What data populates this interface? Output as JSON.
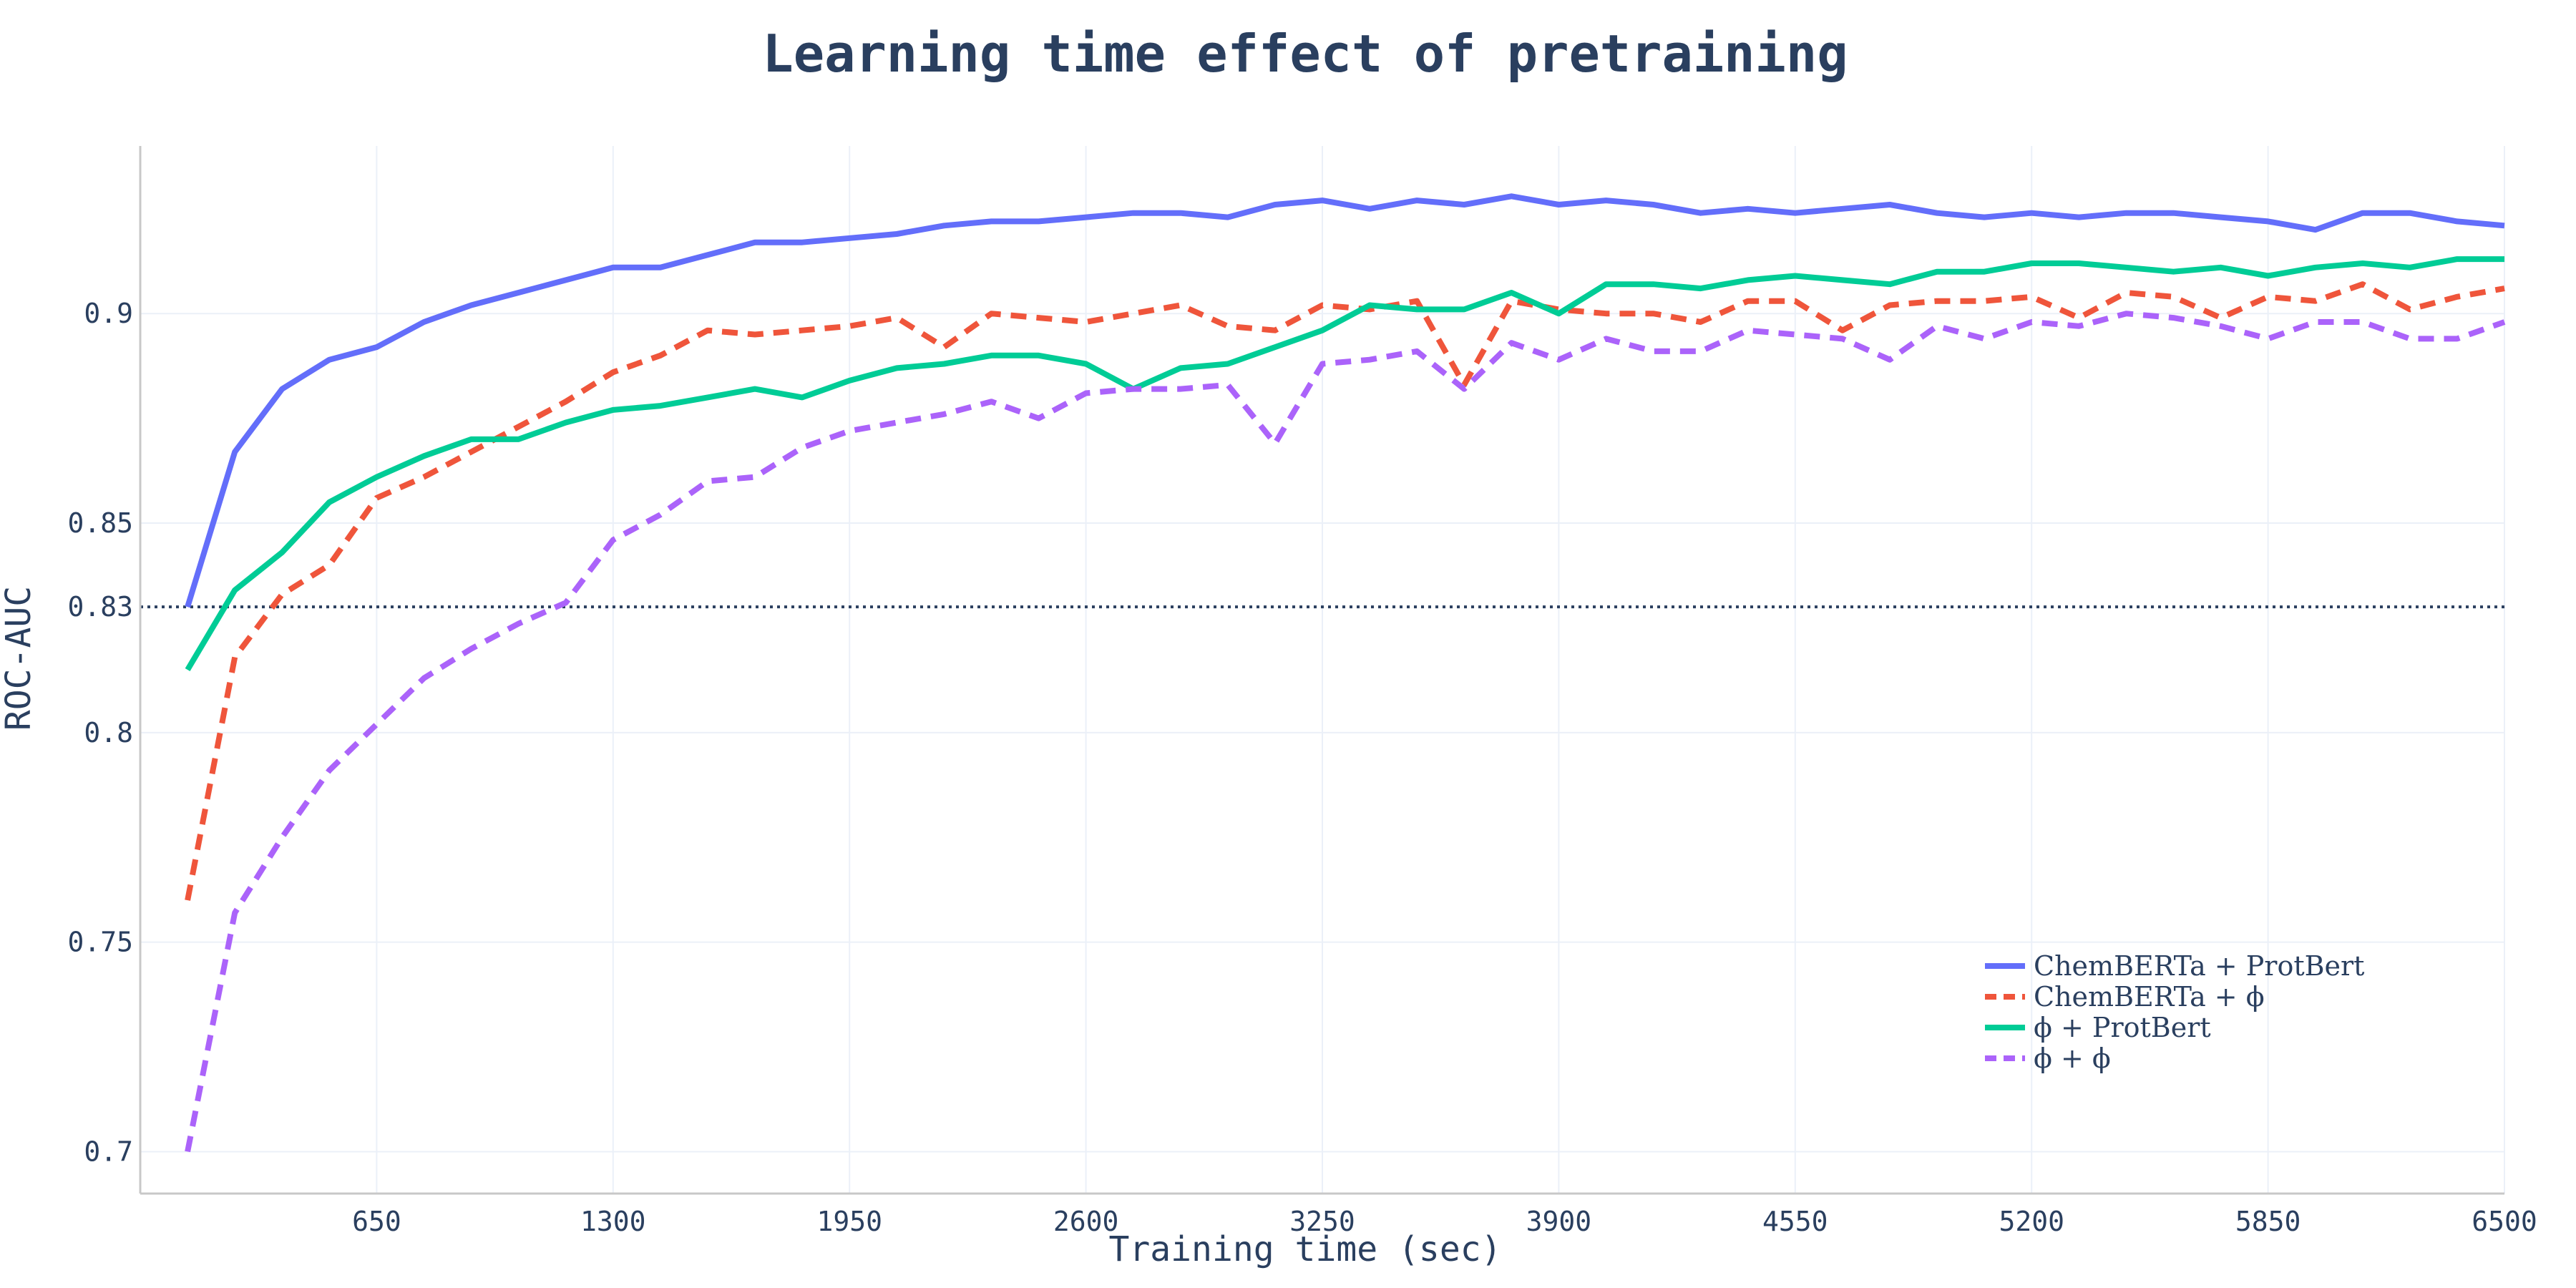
{
  "chart_data": {
    "type": "line",
    "title": "Learning time effect of pretraining",
    "xlabel": "Training time (sec)",
    "ylabel": "ROC-AUC",
    "xlim": [
      0,
      6500
    ],
    "ylim": [
      0.69,
      0.94
    ],
    "x_ticks": [
      650,
      1300,
      1950,
      2600,
      3250,
      3900,
      4550,
      5200,
      5850,
      6500
    ],
    "x_tick_labels": [
      "650",
      "1300",
      "1950",
      "2600",
      "3250",
      "3900",
      "4550",
      "5200",
      "5850",
      "6500"
    ],
    "y_ticks": [
      0.7,
      0.75,
      0.8,
      0.83,
      0.85,
      0.9
    ],
    "y_tick_labels": [
      "0.7",
      "0.75",
      "0.8",
      "0.83",
      "0.85",
      "0.9"
    ],
    "reference_line": {
      "y": 0.83,
      "style": "dotted",
      "color": "#2a3f5f"
    },
    "grid": true,
    "legend": {
      "position": "bottom-right"
    },
    "x": [
      130,
      260,
      390,
      520,
      650,
      780,
      910,
      1040,
      1170,
      1300,
      1430,
      1560,
      1690,
      1820,
      1950,
      2080,
      2210,
      2340,
      2470,
      2600,
      2730,
      2860,
      2990,
      3120,
      3250,
      3380,
      3510,
      3640,
      3770,
      3900,
      4030,
      4160,
      4290,
      4420,
      4550,
      4680,
      4810,
      4940,
      5070,
      5200,
      5330,
      5460,
      5590,
      5720,
      5850,
      5980,
      6110,
      6240,
      6370,
      6500
    ],
    "series": [
      {
        "name": "ChemBERTa + ProtBert",
        "legend_tex": "ChemBERTa + ProtBert",
        "color": "#636efa",
        "dash": "solid",
        "values": [
          0.83,
          0.867,
          0.882,
          0.889,
          0.892,
          0.898,
          0.902,
          0.905,
          0.908,
          0.911,
          0.911,
          0.914,
          0.917,
          0.917,
          0.918,
          0.919,
          0.921,
          0.922,
          0.922,
          0.923,
          0.924,
          0.924,
          0.923,
          0.926,
          0.927,
          0.925,
          0.927,
          0.926,
          0.928,
          0.926,
          0.927,
          0.926,
          0.924,
          0.925,
          0.924,
          0.925,
          0.926,
          0.924,
          0.923,
          0.924,
          0.923,
          0.924,
          0.924,
          0.923,
          0.922,
          0.92,
          0.924,
          0.924,
          0.922,
          0.921
        ]
      },
      {
        "name": "ChemBERTa + ϕ",
        "legend_tex": "ChemBERTa + ϕ",
        "color": "#ef553b",
        "dash": "dashed",
        "values": [
          0.76,
          0.818,
          0.833,
          0.84,
          0.856,
          0.861,
          0.867,
          0.873,
          0.879,
          0.886,
          0.89,
          0.896,
          0.895,
          0.896,
          0.897,
          0.899,
          0.892,
          0.9,
          0.899,
          0.898,
          0.9,
          0.902,
          0.897,
          0.896,
          0.902,
          0.901,
          0.903,
          0.883,
          0.903,
          0.901,
          0.9,
          0.9,
          0.898,
          0.903,
          0.903,
          0.896,
          0.902,
          0.903,
          0.903,
          0.904,
          0.899,
          0.905,
          0.904,
          0.899,
          0.904,
          0.903,
          0.907,
          0.901,
          0.904,
          0.906
        ]
      },
      {
        "name": "ϕ + ProtBert",
        "legend_tex": "ϕ + ProtBert",
        "color": "#00cc96",
        "dash": "solid",
        "values": [
          0.815,
          0.834,
          0.843,
          0.855,
          0.861,
          0.866,
          0.87,
          0.87,
          0.874,
          0.877,
          0.878,
          0.88,
          0.882,
          0.88,
          0.884,
          0.887,
          0.888,
          0.89,
          0.89,
          0.888,
          0.882,
          0.887,
          0.888,
          0.892,
          0.896,
          0.902,
          0.901,
          0.901,
          0.905,
          0.9,
          0.907,
          0.907,
          0.906,
          0.908,
          0.909,
          0.908,
          0.907,
          0.91,
          0.91,
          0.912,
          0.912,
          0.911,
          0.91,
          0.911,
          0.909,
          0.911,
          0.912,
          0.911,
          0.913,
          0.913
        ]
      },
      {
        "name": "ϕ + ϕ",
        "legend_tex": "ϕ + ϕ",
        "color": "#ab63fa",
        "dash": "dashed",
        "values": [
          0.7,
          0.757,
          0.775,
          0.791,
          0.802,
          0.813,
          0.82,
          0.826,
          0.831,
          0.846,
          0.852,
          0.86,
          0.861,
          0.868,
          0.872,
          0.874,
          0.876,
          0.879,
          0.875,
          0.881,
          0.882,
          0.882,
          0.883,
          0.869,
          0.888,
          0.889,
          0.891,
          0.882,
          0.893,
          0.889,
          0.894,
          0.891,
          0.891,
          0.896,
          0.895,
          0.894,
          0.889,
          0.897,
          0.894,
          0.898,
          0.897,
          0.9,
          0.899,
          0.897,
          0.894,
          0.898,
          0.898,
          0.894,
          0.894,
          0.898
        ]
      }
    ]
  }
}
